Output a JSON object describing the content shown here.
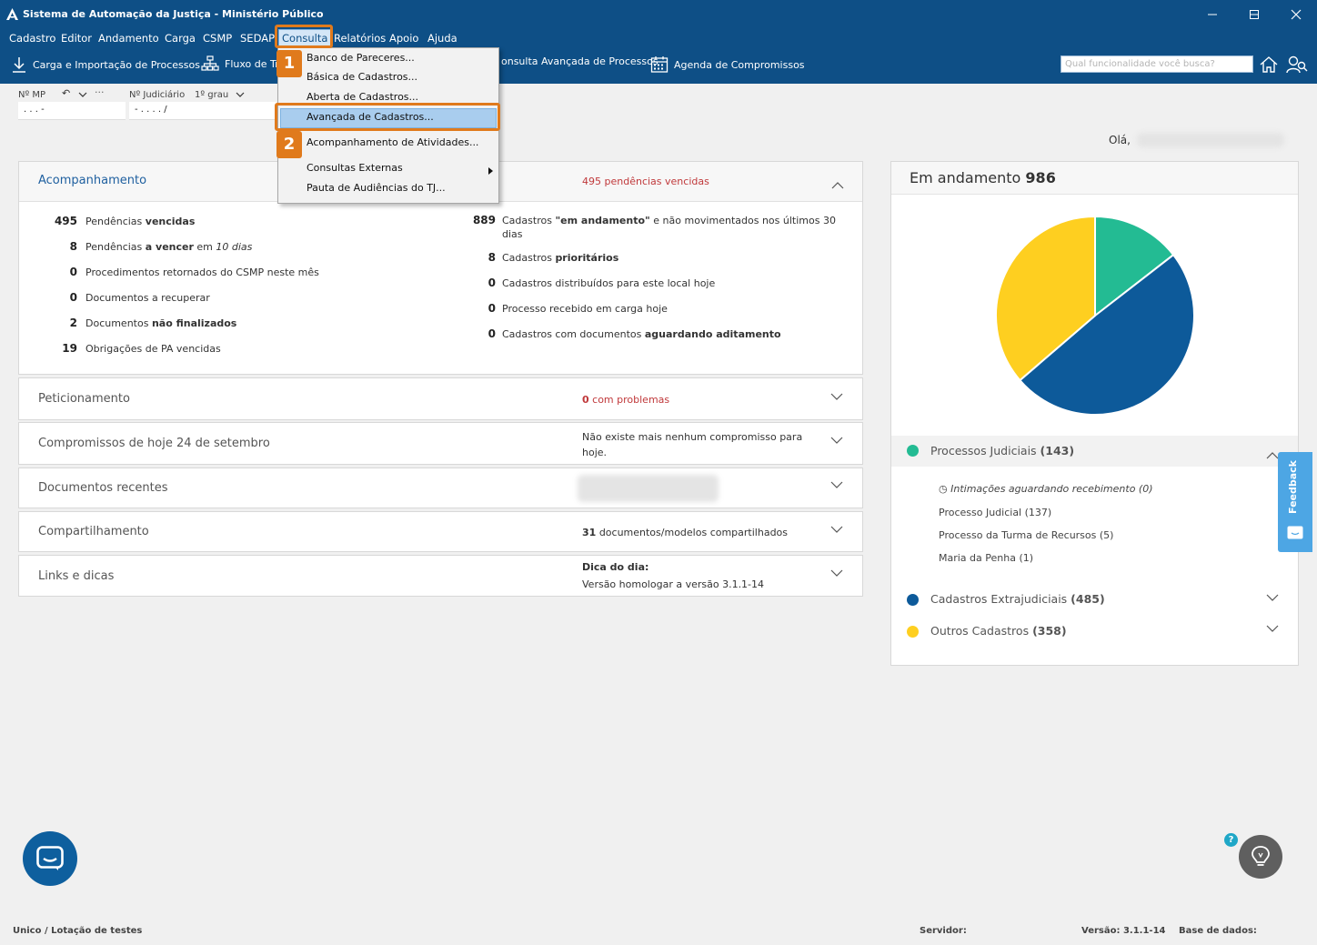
{
  "window": {
    "title": "Sistema de Automação da Justiça - Ministério Público"
  },
  "menu": {
    "items": [
      "Cadastro",
      "Editor",
      "Andamento",
      "Carga",
      "CSMP",
      "SEDAP",
      "Consulta",
      "Relatórios",
      "Apoio",
      "Ajuda"
    ],
    "active": "Consulta"
  },
  "toolbar": {
    "carga": "Carga e Importação de Processos",
    "fluxo": "Fluxo de Tr",
    "consulta_avancada": "onsulta Avançada de Processos",
    "agenda": "Agenda de Compromissos",
    "search_placeholder": "Qual funcionalidade você busca?"
  },
  "dropdown": {
    "items": [
      "Banco de Pareceres...",
      "Básica de Cadastros...",
      "Aberta de Cadastros...",
      "Avançada de Cadastros...",
      "Acompanhamento de Atividades...",
      "Consultas Externas",
      "Pauta de Audiências do TJ..."
    ],
    "selected": "Avançada de Cadastros...",
    "steps": [
      "1",
      "2"
    ]
  },
  "fields": {
    "mp_label": "Nº MP",
    "mp_value": ". . . -",
    "judicial_label": "Nº Judiciário",
    "grau_label": "1º grau",
    "judicial_value": "- . . . . /"
  },
  "greeting": "Olá,",
  "acompanhamento": {
    "title": "Acompanhamento",
    "header_count": "495",
    "header_text": "pendências vencidas",
    "left": [
      {
        "num": "495",
        "text": "Pendências vencidas",
        "red": true
      },
      {
        "num": "8",
        "text": "Pendências a vencer em 10 dias"
      },
      {
        "num": "0",
        "text": "Procedimentos retornados do CSMP neste mês"
      },
      {
        "num": "0",
        "text": "Documentos a recuperar"
      },
      {
        "num": "2",
        "text": "Documentos não finalizados"
      },
      {
        "num": "19",
        "text": "Obrigações de PA vencidas"
      }
    ],
    "right": [
      {
        "num": "889",
        "text": "Cadastros \"em andamento\" e não movimentados nos últimos 30 dias"
      },
      {
        "num": "8",
        "text": "Cadastros prioritários"
      },
      {
        "num": "0",
        "text": "Cadastros distribuídos para este local hoje"
      },
      {
        "num": "0",
        "text": "Processo recebido em carga hoje"
      },
      {
        "num": "0",
        "text": "Cadastros com documentos aguardando aditamento"
      }
    ]
  },
  "sections": [
    {
      "title": "Peticionamento",
      "info_num": "0",
      "info": "com problemas"
    },
    {
      "title": "Compromissos de hoje 24 de setembro",
      "info": "Não existe mais nenhum compromisso para hoje."
    },
    {
      "title": "Documentos recentes"
    },
    {
      "title": "Compartilhamento",
      "info_num": "31",
      "info": "documentos/modelos compartilhados"
    },
    {
      "title": "Links e dicas",
      "info_bold": "Dica do dia:",
      "info": "Versão homologar a versão 3.1.1-14"
    }
  ],
  "em_andamento": {
    "label": "Em andamento",
    "total": "986"
  },
  "chart_data": {
    "type": "pie",
    "labels": [
      "Processos Judiciais",
      "Cadastros Extrajudiciais",
      "Outros Cadastros"
    ],
    "values": [
      143,
      485,
      358
    ],
    "colors": [
      "#23bb93",
      "#0d5a9a",
      "#fecf20"
    ]
  },
  "legend": {
    "processos": "Processos Judiciais",
    "processos_count": "(143)",
    "extra": "Cadastros Extrajudiciais",
    "extra_count": "(485)",
    "outros": "Outros Cadastros",
    "outros_count": "(358)",
    "sub_items": [
      "Intimações aguardando recebimento (0)",
      "Processo Judicial (137)",
      "Processo da Turma de Recursos (5)",
      "Maria da Penha (1)"
    ]
  },
  "feedback": "Feedback",
  "help": "?",
  "status": {
    "lotacao": "Unico / Lotação de testes",
    "servidor": "Servidor:",
    "versao": "Versão: 3.1.1-14",
    "base": "Base de dados:"
  }
}
